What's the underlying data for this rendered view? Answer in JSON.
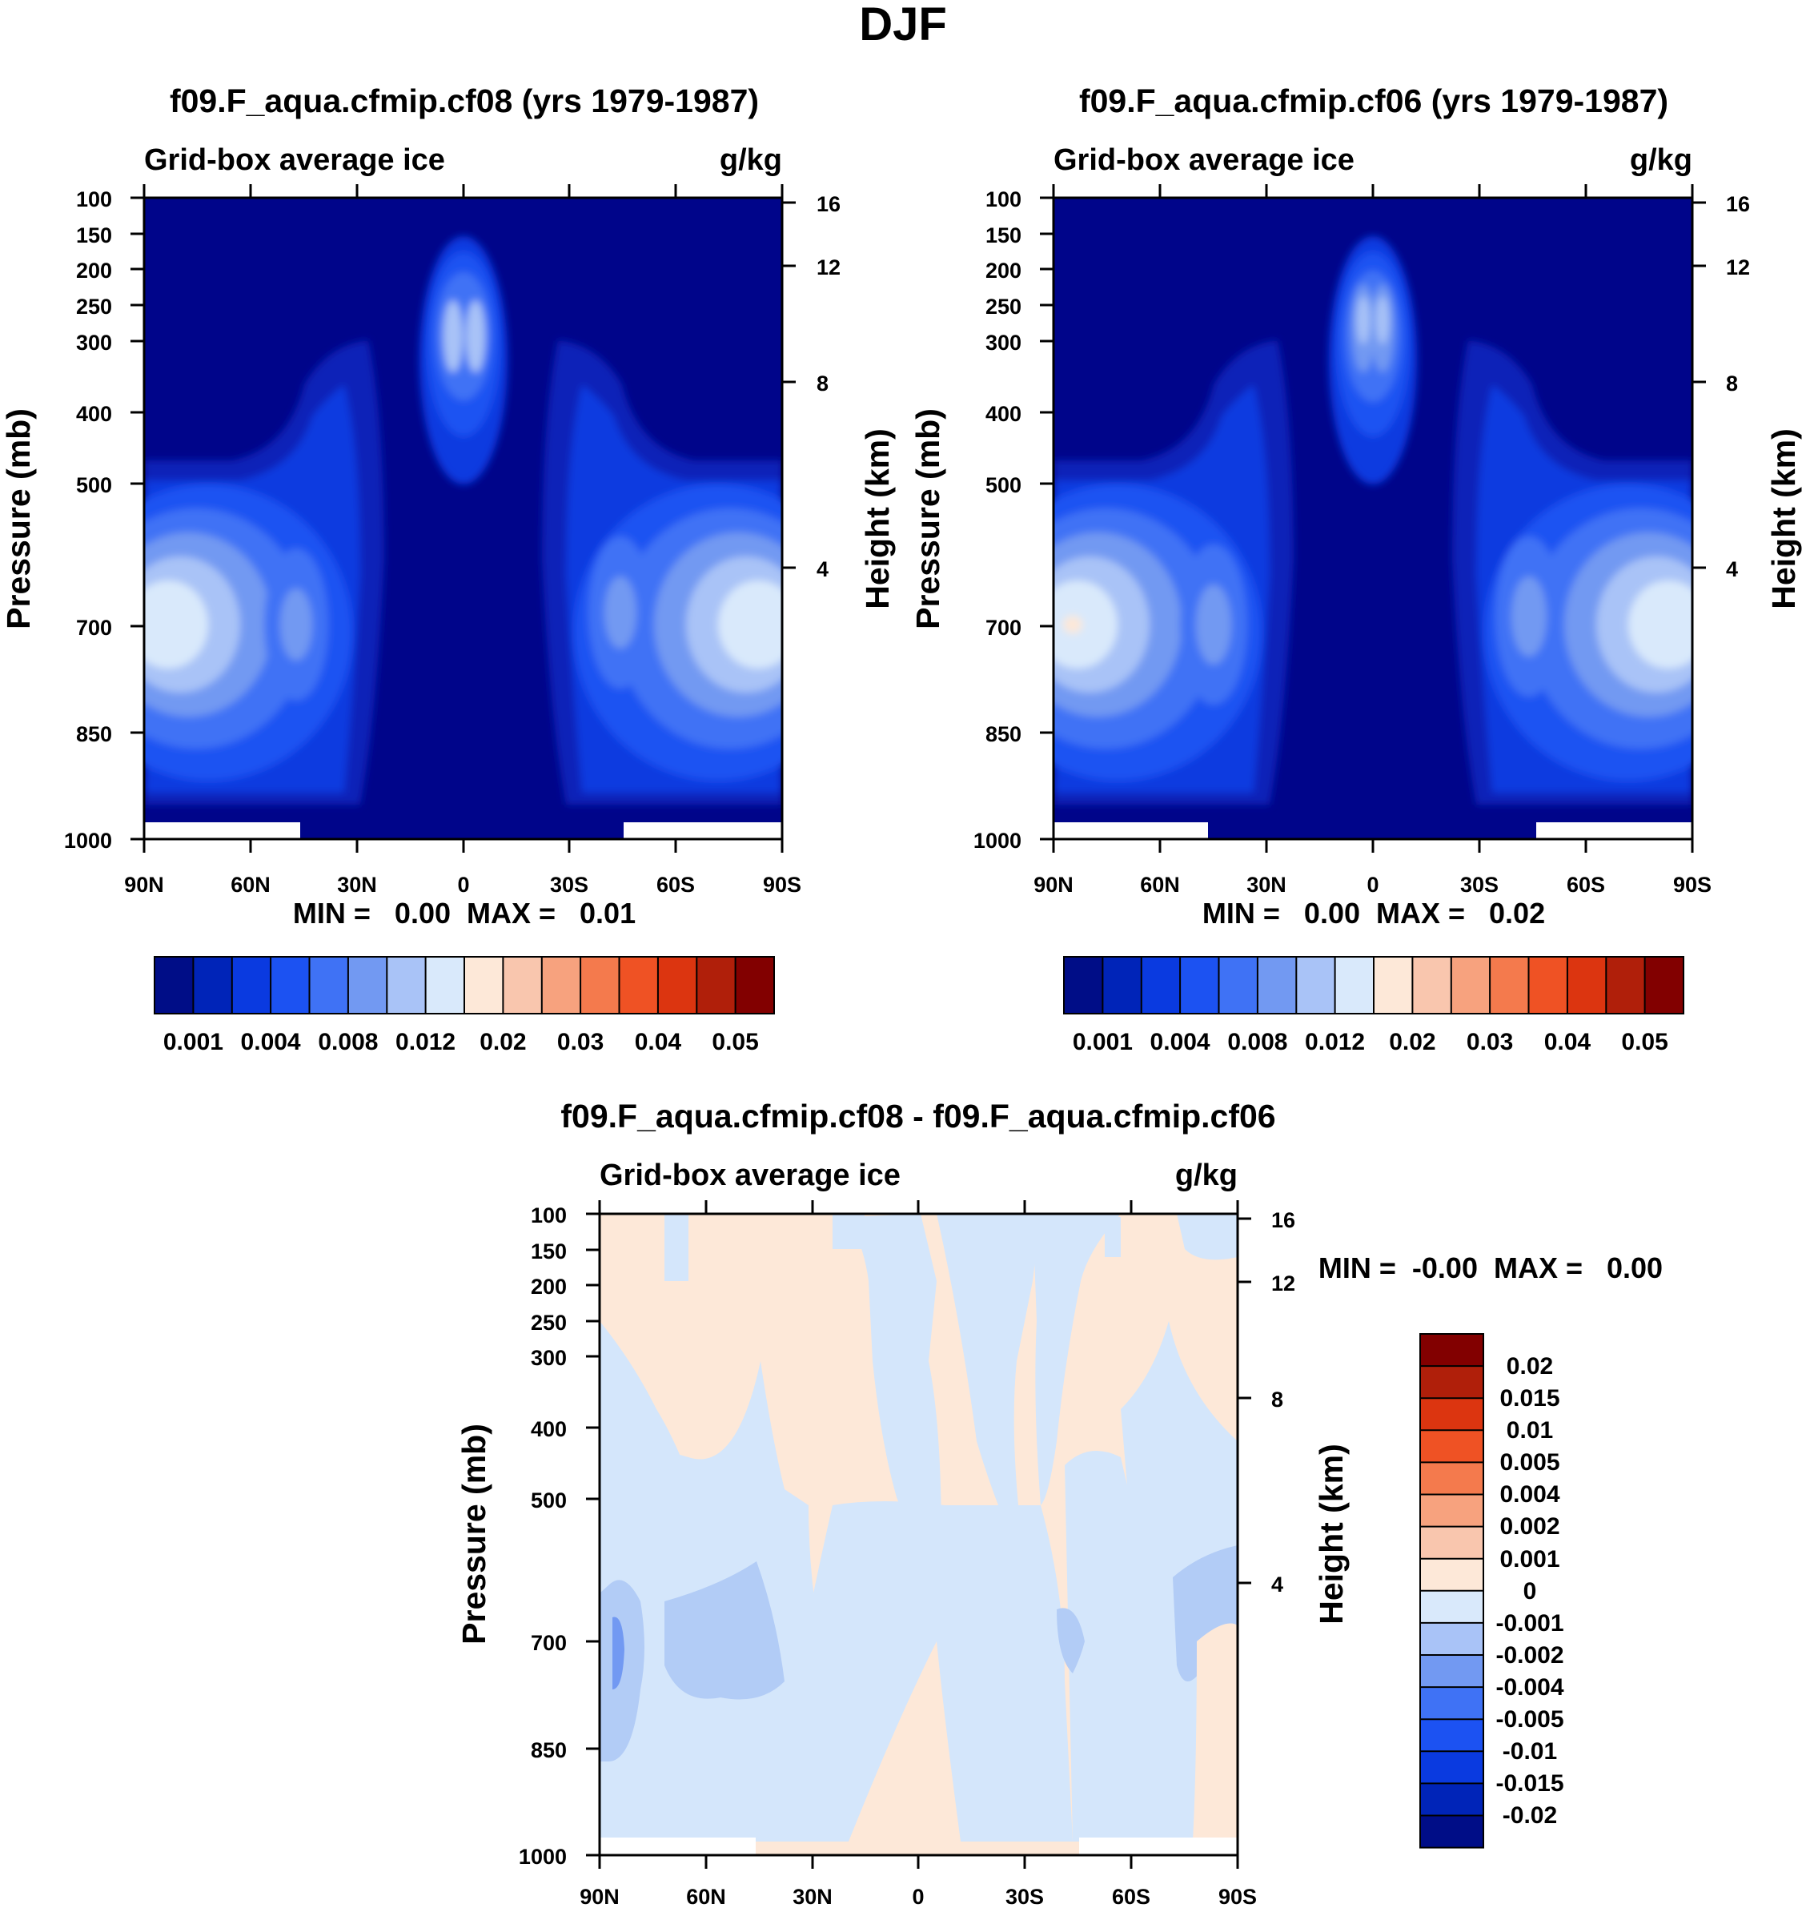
{
  "figure_title": "DJF",
  "chart_data": [
    {
      "type": "contour",
      "title": "f09.F_aqua.cfmip.cf08 (yrs 1979-1987)",
      "left_subtitle": "Grid-box average ice",
      "right_subtitle": "g/kg",
      "ylabel": "Pressure (mb)",
      "ylabel_right": "Height (km)",
      "x_ticks": [
        "90N",
        "60N",
        "30N",
        "0",
        "30S",
        "60S",
        "90S"
      ],
      "x_range": [
        90,
        -90
      ],
      "y_ticks": [
        "100",
        "150",
        "200",
        "250",
        "300",
        "400",
        "500",
        "700",
        "850",
        "1000"
      ],
      "y_range": [
        100,
        1000
      ],
      "y_right_ticks": [
        "16",
        "12",
        "8",
        "4"
      ],
      "min_max": "MIN =   0.00  MAX =   0.01",
      "colorbar_labels": [
        "0.001",
        "0.004",
        "0.008",
        "0.012",
        "0.02",
        "0.03",
        "0.04",
        "0.05"
      ],
      "colorbar_levels": [
        0.001,
        0.002,
        0.004,
        0.006,
        0.008,
        0.01,
        0.012,
        0.015,
        0.02,
        0.025,
        0.03,
        0.035,
        0.04,
        0.045,
        0.05
      ],
      "colorbar_orientation": "horizontal"
    },
    {
      "type": "contour",
      "title": "f09.F_aqua.cfmip.cf06 (yrs 1979-1987)",
      "left_subtitle": "Grid-box average ice",
      "right_subtitle": "g/kg",
      "ylabel": "Pressure (mb)",
      "ylabel_right": "Height (km)",
      "x_ticks": [
        "90N",
        "60N",
        "30N",
        "0",
        "30S",
        "60S",
        "90S"
      ],
      "x_range": [
        90,
        -90
      ],
      "y_ticks": [
        "100",
        "150",
        "200",
        "250",
        "300",
        "400",
        "500",
        "700",
        "850",
        "1000"
      ],
      "y_range": [
        100,
        1000
      ],
      "y_right_ticks": [
        "16",
        "12",
        "8",
        "4"
      ],
      "min_max": "MIN =   0.00  MAX =   0.02",
      "colorbar_labels": [
        "0.001",
        "0.004",
        "0.008",
        "0.012",
        "0.02",
        "0.03",
        "0.04",
        "0.05"
      ],
      "colorbar_levels": [
        0.001,
        0.002,
        0.004,
        0.006,
        0.008,
        0.01,
        0.012,
        0.015,
        0.02,
        0.025,
        0.03,
        0.035,
        0.04,
        0.045,
        0.05
      ],
      "colorbar_orientation": "horizontal"
    },
    {
      "type": "contour",
      "title": "f09.F_aqua.cfmip.cf08 - f09.F_aqua.cfmip.cf06",
      "left_subtitle": "Grid-box average ice",
      "right_subtitle": "g/kg",
      "ylabel": "Pressure (mb)",
      "ylabel_right": "Height (km)",
      "x_ticks": [
        "90N",
        "60N",
        "30N",
        "0",
        "30S",
        "60S",
        "90S"
      ],
      "x_range": [
        90,
        -90
      ],
      "y_ticks": [
        "100",
        "150",
        "200",
        "250",
        "300",
        "400",
        "500",
        "700",
        "850",
        "1000"
      ],
      "y_range": [
        100,
        1000
      ],
      "y_right_ticks": [
        "16",
        "12",
        "8",
        "4"
      ],
      "min_max": "MIN =  -0.00  MAX =   0.00",
      "colorbar_labels": [
        "0.02",
        "0.015",
        "0.01",
        "0.005",
        "0.004",
        "0.002",
        "0.001",
        "0",
        "-0.001",
        "-0.002",
        "-0.004",
        "-0.005",
        "-0.01",
        "-0.015",
        "-0.02"
      ],
      "colorbar_orientation": "vertical"
    }
  ],
  "colors": {
    "background_level": "#00058a",
    "positive_faint": "#fde8d8",
    "negative_faint": "#d4e6fb",
    "negative_light": "#b2ccf6",
    "palette": [
      "#000d87",
      "#0024b8",
      "#0a3ae0",
      "#1c52f2",
      "#3f72f5",
      "#7299f2",
      "#a9c3f7",
      "#d9e9fb",
      "#fde8d8",
      "#f9c6ae",
      "#f7a27e",
      "#f47a4d",
      "#ef5224",
      "#dc3510",
      "#b01f0a",
      "#820000"
    ]
  }
}
